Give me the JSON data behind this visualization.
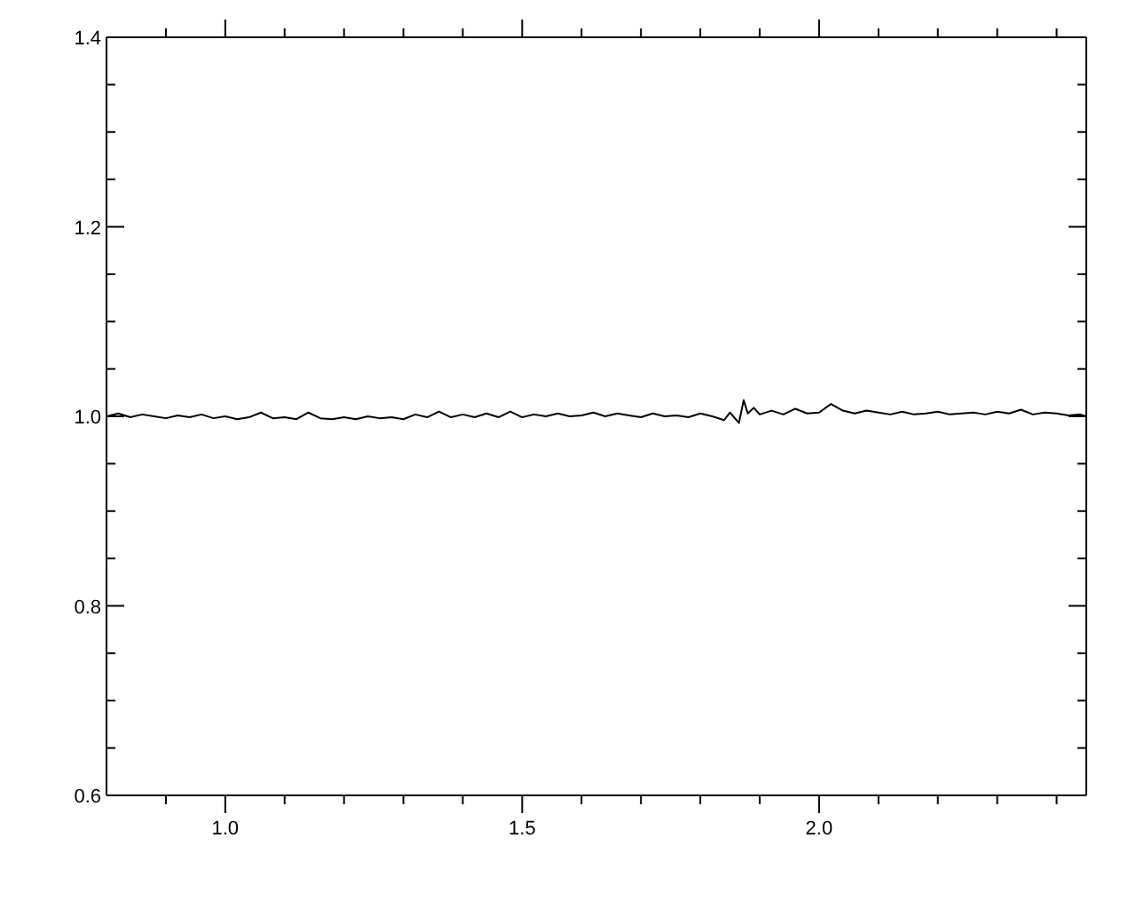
{
  "chart_data": {
    "type": "line",
    "x": [
      0.8,
      0.82,
      0.84,
      0.86,
      0.88,
      0.9,
      0.92,
      0.94,
      0.96,
      0.98,
      1.0,
      1.02,
      1.04,
      1.06,
      1.08,
      1.1,
      1.12,
      1.14,
      1.16,
      1.18,
      1.2,
      1.22,
      1.24,
      1.26,
      1.28,
      1.3,
      1.32,
      1.34,
      1.36,
      1.38,
      1.4,
      1.42,
      1.44,
      1.46,
      1.48,
      1.5,
      1.52,
      1.54,
      1.56,
      1.58,
      1.6,
      1.62,
      1.64,
      1.66,
      1.68,
      1.7,
      1.72,
      1.74,
      1.76,
      1.78,
      1.8,
      1.82,
      1.84,
      1.85,
      1.865,
      1.873,
      1.88,
      1.89,
      1.9,
      1.92,
      1.94,
      1.96,
      1.98,
      2.0,
      2.02,
      2.04,
      2.06,
      2.08,
      2.1,
      2.12,
      2.14,
      2.16,
      2.18,
      2.2,
      2.22,
      2.24,
      2.26,
      2.28,
      2.3,
      2.32,
      2.34,
      2.36,
      2.38,
      2.4,
      2.42,
      2.44,
      2.45
    ],
    "series": [
      {
        "color": "#000000",
        "values": [
          1.0,
          1.003,
          0.999,
          1.002,
          1.0,
          0.998,
          1.001,
          0.999,
          1.002,
          0.998,
          1.0,
          0.997,
          0.999,
          1.004,
          0.998,
          0.999,
          0.997,
          1.004,
          0.998,
          0.997,
          0.999,
          0.997,
          1.0,
          0.998,
          0.999,
          0.997,
          1.002,
          0.999,
          1.005,
          0.999,
          1.002,
          0.999,
          1.003,
          0.999,
          1.005,
          0.999,
          1.002,
          1.0,
          1.003,
          1.0,
          1.001,
          1.004,
          1.0,
          1.003,
          1.001,
          0.999,
          1.003,
          1.0,
          1.001,
          0.999,
          1.003,
          1.0,
          0.996,
          1.004,
          0.993,
          1.017,
          1.003,
          1.009,
          1.002,
          1.006,
          1.002,
          1.008,
          1.003,
          1.004,
          1.013,
          1.006,
          1.003,
          1.006,
          1.004,
          1.002,
          1.005,
          1.002,
          1.003,
          1.005,
          1.002,
          1.003,
          1.004,
          1.002,
          1.005,
          1.003,
          1.007,
          1.002,
          1.004,
          1.003,
          1.001,
          1.002,
          1.0
        ]
      }
    ],
    "xlim": [
      0.8,
      2.45
    ],
    "ylim": [
      0.6,
      1.4
    ],
    "xticks": [
      {
        "value": 0.9,
        "label": null
      },
      {
        "value": 1.0,
        "label": "1.0"
      },
      {
        "value": 1.1,
        "label": null
      },
      {
        "value": 1.2,
        "label": null
      },
      {
        "value": 1.3,
        "label": null
      },
      {
        "value": 1.4,
        "label": null
      },
      {
        "value": 1.5,
        "label": "1.5"
      },
      {
        "value": 1.6,
        "label": null
      },
      {
        "value": 1.7,
        "label": null
      },
      {
        "value": 1.8,
        "label": null
      },
      {
        "value": 1.9,
        "label": null
      },
      {
        "value": 2.0,
        "label": "2.0"
      },
      {
        "value": 2.1,
        "label": null
      },
      {
        "value": 2.2,
        "label": null
      },
      {
        "value": 2.3,
        "label": null
      },
      {
        "value": 2.4,
        "label": null
      }
    ],
    "yticks": [
      {
        "value": 0.6,
        "label": "0.6"
      },
      {
        "value": 0.65,
        "label": null
      },
      {
        "value": 0.7,
        "label": null
      },
      {
        "value": 0.75,
        "label": null
      },
      {
        "value": 0.8,
        "label": "0.8"
      },
      {
        "value": 0.85,
        "label": null
      },
      {
        "value": 0.9,
        "label": null
      },
      {
        "value": 0.95,
        "label": null
      },
      {
        "value": 1.0,
        "label": "1.0"
      },
      {
        "value": 1.05,
        "label": null
      },
      {
        "value": 1.1,
        "label": null
      },
      {
        "value": 1.15,
        "label": null
      },
      {
        "value": 1.2,
        "label": "1.2"
      },
      {
        "value": 1.25,
        "label": null
      },
      {
        "value": 1.3,
        "label": null
      },
      {
        "value": 1.35,
        "label": null
      },
      {
        "value": 1.4,
        "label": "1.4"
      }
    ],
    "marker": "none",
    "line_style": "solid",
    "grid": false,
    "legend": false
  }
}
